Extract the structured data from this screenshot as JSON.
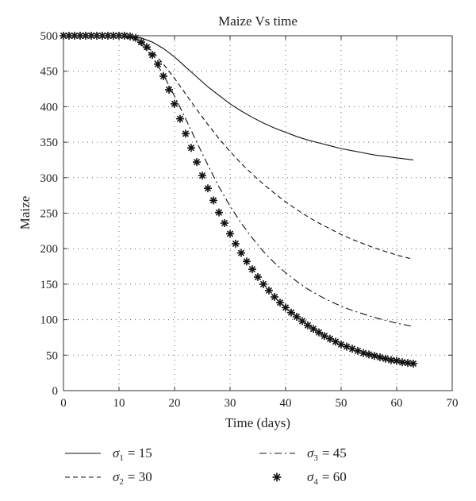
{
  "chart_data": {
    "type": "line",
    "title": "Maize Vs time",
    "xlabel": "Time (days)",
    "ylabel": "Maize",
    "xlim": [
      0,
      70
    ],
    "ylim": [
      0,
      500
    ],
    "xticks": [
      0,
      10,
      20,
      30,
      40,
      50,
      60,
      70
    ],
    "yticks": [
      0,
      50,
      100,
      150,
      200,
      250,
      300,
      350,
      400,
      450,
      500
    ],
    "grid": true,
    "legend_position": "bottom",
    "series": [
      {
        "name": "σ1 = 15",
        "symbol": "σ",
        "sub": "1",
        "value_text": "= 15",
        "style": "solid",
        "x": [
          0,
          5,
          10,
          12,
          14,
          16,
          18,
          20,
          22,
          24,
          26,
          28,
          30,
          32,
          34,
          36,
          38,
          40,
          42,
          44,
          46,
          48,
          50,
          52,
          54,
          56,
          58,
          60,
          62,
          63
        ],
        "y": [
          500,
          500,
          500,
          499,
          497,
          491,
          482,
          470,
          456,
          442,
          428,
          416,
          404,
          394,
          385,
          377,
          370,
          364,
          358,
          353,
          349,
          345,
          341,
          338,
          335,
          332,
          330,
          328,
          326,
          325
        ]
      },
      {
        "name": "σ2 = 30",
        "symbol": "σ",
        "sub": "2",
        "value_text": "= 30",
        "style": "dashed",
        "x": [
          0,
          5,
          10,
          12,
          14,
          16,
          18,
          20,
          22,
          24,
          26,
          28,
          30,
          32,
          34,
          36,
          38,
          40,
          42,
          44,
          46,
          48,
          50,
          52,
          54,
          56,
          58,
          60,
          62,
          63
        ],
        "y": [
          500,
          500,
          500,
          498,
          492,
          478,
          460,
          440,
          418,
          396,
          375,
          355,
          337,
          320,
          305,
          291,
          278,
          266,
          255,
          245,
          236,
          228,
          220,
          213,
          207,
          201,
          196,
          191,
          187,
          185
        ]
      },
      {
        "name": "σ3 = 45",
        "symbol": "σ",
        "sub": "3",
        "value_text": "= 45",
        "style": "dashdot",
        "x": [
          0,
          5,
          10,
          12,
          14,
          16,
          18,
          20,
          22,
          24,
          26,
          28,
          30,
          32,
          34,
          36,
          38,
          40,
          42,
          44,
          46,
          48,
          50,
          52,
          54,
          56,
          58,
          60,
          62,
          63
        ],
        "y": [
          500,
          500,
          500,
          497,
          488,
          470,
          445,
          415,
          383,
          350,
          318,
          287,
          260,
          236,
          215,
          196,
          180,
          166,
          154,
          143,
          134,
          126,
          119,
          113,
          108,
          103,
          99,
          95,
          92,
          90
        ]
      },
      {
        "name": "σ4 = 60",
        "symbol": "σ",
        "sub": "4",
        "value_text": "= 60",
        "style": "asterisk",
        "x": [
          0,
          1,
          2,
          3,
          4,
          5,
          6,
          7,
          8,
          9,
          10,
          11,
          12,
          13,
          14,
          15,
          16,
          17,
          18,
          19,
          20,
          21,
          22,
          23,
          24,
          25,
          26,
          27,
          28,
          29,
          30,
          31,
          32,
          33,
          34,
          35,
          36,
          37,
          38,
          39,
          40,
          41,
          42,
          43,
          44,
          45,
          46,
          47,
          48,
          49,
          50,
          51,
          52,
          53,
          54,
          55,
          56,
          57,
          58,
          59,
          60,
          61,
          62,
          63
        ],
        "y": [
          500,
          500,
          500,
          500,
          500,
          500,
          500,
          500,
          500,
          500,
          500,
          500,
          499,
          497,
          491,
          484,
          473,
          460,
          443,
          424,
          404,
          383,
          362,
          342,
          322,
          303,
          285,
          268,
          251,
          236,
          221,
          207,
          194,
          182,
          171,
          160,
          150,
          141,
          132,
          124,
          117,
          110,
          104,
          98,
          92,
          87,
          82,
          77,
          73,
          69,
          65,
          62,
          59,
          56,
          53,
          51,
          49,
          47,
          45,
          43,
          42,
          40,
          39,
          38
        ]
      }
    ]
  }
}
